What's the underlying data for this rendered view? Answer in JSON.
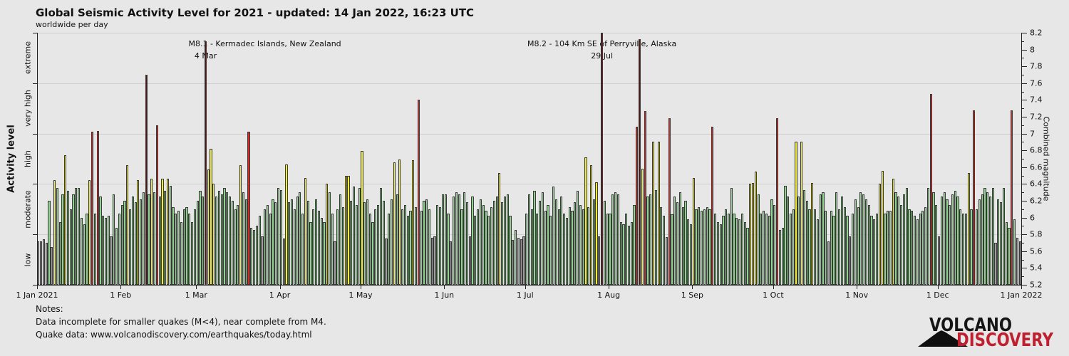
{
  "header": {
    "title": "Global Seismic Activity Level for 2021 - updated: 14 Jan 2022, 16:23 UTC",
    "subtitle": "worldwide per day"
  },
  "left_axis": {
    "label": "Activity level",
    "categories": [
      "extreme",
      "very high",
      "high",
      "moderate",
      "low"
    ]
  },
  "right_axis": {
    "label": "Combined magnitude",
    "min": 5.2,
    "max": 8.2,
    "major_step": 0.2,
    "minor_step": 0.1
  },
  "x_axis": {
    "month_labels": [
      "1 Jan 2021",
      "1 Feb",
      "1 Mar",
      "1 Apr",
      "1 May",
      "1 Jun",
      "1 Jul",
      "1 Aug",
      "1 Sep",
      "1 Oct",
      "1 Nov",
      "1 Dec",
      "1 Jan 2022"
    ],
    "month_day_offsets": [
      0,
      31,
      59,
      90,
      120,
      151,
      181,
      212,
      243,
      273,
      304,
      334,
      365
    ]
  },
  "annotations": [
    {
      "text": "M8.1 - Kermadec Islands, New Zealand",
      "date_label": "4 Mar",
      "day_of_year": 63,
      "align": "bar-left"
    },
    {
      "text": "M8.2 - 104 Km SE of Perryville, Alaska",
      "date_label": "29 Jul",
      "day_of_year": 210,
      "align": "center"
    }
  ],
  "notes": {
    "heading": "Notes:",
    "line1": "Data incomplete for smaller quakes (M<4), near complete from M4.",
    "line2": "Quake data: www.volcanodiscovery.com/earthquakes/today.html"
  },
  "logo": {
    "top": "VOLCANO",
    "bottom": "DISCOVERY",
    "accent_color": "#c01f2f"
  },
  "colors": {
    "background": "#e7e7e7",
    "low": "#9f9f9f",
    "moderate": "#8fd28d",
    "high": "#efec32",
    "very_high": "#d52a23",
    "extreme": "#5e0f10",
    "bar_outline": "#3a3a3a",
    "gridline": "#cfcfcf",
    "axis": "#222222"
  },
  "chart_data": {
    "type": "bar",
    "title": "Global Seismic Activity Level for 2021 - updated: 14 Jan 2022, 16:23 UTC",
    "subtitle": "worldwide per day",
    "ylabel_left": "Activity level",
    "ylabel_right": "Combined magnitude",
    "ylim": [
      5.2,
      8.2
    ],
    "gridline_mags": [
      5.8,
      6.4,
      7.0,
      7.6,
      8.2
    ],
    "level_boundaries": [
      5.2,
      5.8,
      6.4,
      7.0,
      7.6,
      8.2
    ],
    "level_names_top_down": [
      "extreme",
      "very high",
      "high",
      "moderate",
      "low"
    ],
    "x_start": "1 Jan 2021",
    "x_end": "1 Jan 2022",
    "days_in_months": [
      31,
      28,
      31,
      30,
      31,
      30,
      31,
      31,
      30,
      31,
      30,
      31
    ],
    "daily_combined_magnitude": [
      5.72,
      5.72,
      5.74,
      5.7,
      6.2,
      5.65,
      6.45,
      6.35,
      5.95,
      6.28,
      6.74,
      6.32,
      6.1,
      6.28,
      6.35,
      6.35,
      6.0,
      5.92,
      6.05,
      6.45,
      7.02,
      6.05,
      7.03,
      6.25,
      6.02,
      6.0,
      6.02,
      5.78,
      6.28,
      5.88,
      6.05,
      6.15,
      6.2,
      6.62,
      6.1,
      6.25,
      6.18,
      6.45,
      6.22,
      6.3,
      7.7,
      6.28,
      6.46,
      6.3,
      7.1,
      6.25,
      6.46,
      6.32,
      6.46,
      6.38,
      6.12,
      6.05,
      6.08,
      5.95,
      6.1,
      6.12,
      6.05,
      5.95,
      6.1,
      6.2,
      6.32,
      6.25,
      8.1,
      6.57,
      6.82,
      6.4,
      6.25,
      6.32,
      6.28,
      6.35,
      6.3,
      6.25,
      6.2,
      6.1,
      6.15,
      6.62,
      6.3,
      6.22,
      7.02,
      5.88,
      5.85,
      5.9,
      6.02,
      5.78,
      6.1,
      6.15,
      6.05,
      6.22,
      6.18,
      6.35,
      6.33,
      5.75,
      6.63,
      6.18,
      6.22,
      6.1,
      6.25,
      6.3,
      6.05,
      6.47,
      6.2,
      5.95,
      6.1,
      6.22,
      6.08,
      6.0,
      5.95,
      6.4,
      6.3,
      6.05,
      5.72,
      6.1,
      6.28,
      6.12,
      6.5,
      6.5,
      6.2,
      6.37,
      6.15,
      6.35,
      6.79,
      6.18,
      6.22,
      6.05,
      5.95,
      6.1,
      6.15,
      6.35,
      6.2,
      5.75,
      6.05,
      6.22,
      6.66,
      6.28,
      6.69,
      6.1,
      6.15,
      6.02,
      6.08,
      6.68,
      6.12,
      7.4,
      6.08,
      6.2,
      6.22,
      6.1,
      5.76,
      5.78,
      6.15,
      6.12,
      6.28,
      6.28,
      6.05,
      5.72,
      6.25,
      6.3,
      6.28,
      6.1,
      6.3,
      6.18,
      5.78,
      6.25,
      6.02,
      6.1,
      6.22,
      6.15,
      6.08,
      6.02,
      6.12,
      6.2,
      6.25,
      6.53,
      6.18,
      6.25,
      6.28,
      6.02,
      5.73,
      5.85,
      5.76,
      5.74,
      5.78,
      6.05,
      6.28,
      6.1,
      6.32,
      6.05,
      6.2,
      6.3,
      6.08,
      6.15,
      6.02,
      6.37,
      6.22,
      6.1,
      6.25,
      6.05,
      6.0,
      6.12,
      6.08,
      6.18,
      6.32,
      6.15,
      6.1,
      6.72,
      6.12,
      6.62,
      6.22,
      6.42,
      5.78,
      8.2,
      6.2,
      6.05,
      6.05,
      6.28,
      6.3,
      6.28,
      5.95,
      5.92,
      6.05,
      5.9,
      5.95,
      6.15,
      7.08,
      8.12,
      6.58,
      7.27,
      6.25,
      6.28,
      6.9,
      6.33,
      6.9,
      6.12,
      6.02,
      5.77,
      7.18,
      6.04,
      6.25,
      6.18,
      6.3,
      6.12,
      6.2,
      5.98,
      5.92,
      6.47,
      6.1,
      6.12,
      6.08,
      6.1,
      6.12,
      6.1,
      7.08,
      6.05,
      5.95,
      5.92,
      6.02,
      6.1,
      6.05,
      6.35,
      6.05,
      6.0,
      5.98,
      6.05,
      5.95,
      5.88,
      6.4,
      6.41,
      6.55,
      6.28,
      6.05,
      6.08,
      6.05,
      6.02,
      6.22,
      6.15,
      7.18,
      5.85,
      5.88,
      6.38,
      6.25,
      6.05,
      6.1,
      6.9,
      6.25,
      6.9,
      6.33,
      6.2,
      6.1,
      6.41,
      6.1,
      5.98,
      6.28,
      6.3,
      6.08,
      5.72,
      6.08,
      6.02,
      6.3,
      6.1,
      6.25,
      6.12,
      6.02,
      5.78,
      6.05,
      6.22,
      6.12,
      6.3,
      6.28,
      6.22,
      6.15,
      6.02,
      5.98,
      6.05,
      6.4,
      6.56,
      6.05,
      6.08,
      6.08,
      6.46,
      6.3,
      6.25,
      6.15,
      6.28,
      6.35,
      6.1,
      6.08,
      6.02,
      5.98,
      6.05,
      6.08,
      6.12,
      6.35,
      7.47,
      6.3,
      6.15,
      5.78,
      6.25,
      6.3,
      6.22,
      6.15,
      6.28,
      6.32,
      6.25,
      6.1,
      6.05,
      6.05,
      6.53,
      6.1,
      7.28,
      6.1,
      6.22,
      6.28,
      6.35,
      6.3,
      6.25,
      6.35,
      5.7,
      6.22,
      6.18,
      6.35,
      5.95,
      5.88,
      7.28,
      5.98,
      5.76,
      5.72
    ]
  }
}
